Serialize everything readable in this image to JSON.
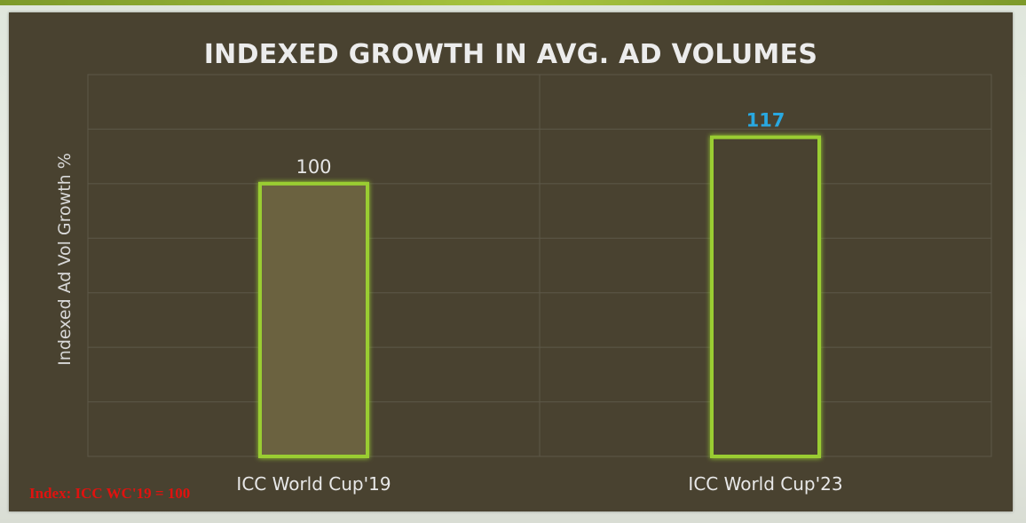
{
  "chart_data": {
    "type": "bar",
    "title": "INDEXED GROWTH IN AVG. AD VOLUMES",
    "ylabel": "Indexed Ad Vol Growth %",
    "xlabel": "",
    "categories": [
      "ICC World Cup'19",
      "ICC World Cup'23"
    ],
    "values": [
      100,
      117
    ],
    "data_labels": [
      "100",
      "117"
    ],
    "ylim": [
      0,
      140
    ],
    "grid": true,
    "legend": "none",
    "colors": {
      "panel_background": "#494230",
      "gridline": "#5d5848",
      "bar_outline": "#9acd32",
      "bar_fill_first": "#6b6240",
      "bar_fill_second": "#494230",
      "label_first": "#e6e6e6",
      "label_second": "#29a8e0",
      "note": "#e0120f"
    }
  },
  "footnote": "Index: ICC WC'19 = 100"
}
